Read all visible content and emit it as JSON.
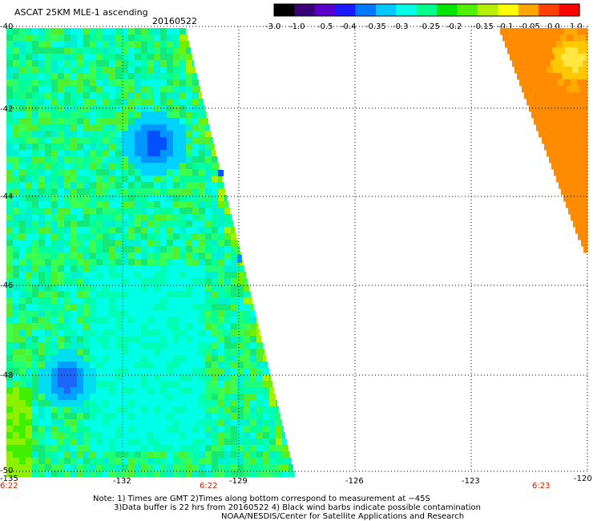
{
  "header": {
    "title": "ASCAT 25KM MLE-1 ascending",
    "date": "20160522"
  },
  "colorbar": {
    "labels": [
      "-3.0",
      "-1.0",
      "-0.5",
      "-0.4",
      "-0.35",
      "-0.3",
      "-0.25",
      "-0.2",
      "-0.15",
      "-0.1",
      "-0.05",
      "0.0",
      "1.0"
    ],
    "colors": [
      "#000000",
      "#3a0075",
      "#5a00c8",
      "#1a1aff",
      "#0078ff",
      "#00c8ff",
      "#00ffe6",
      "#00ff8c",
      "#00e600",
      "#50f000",
      "#b4f000",
      "#ffff00",
      "#ffa500",
      "#ff4000",
      "#ff0000"
    ]
  },
  "axes": {
    "lat_labels": [
      "-40",
      "-42",
      "-44",
      "-46",
      "-48",
      "-50"
    ],
    "lon_labels": [
      "-135",
      "-132",
      "-129",
      "-126",
      "-123",
      "-120"
    ],
    "times": [
      "6:22",
      "6:22",
      "6:23"
    ]
  },
  "notes": [
    "Note: 1) Times are GMT 2)Times along bottom correspond to measurement at −45S",
    "3)Data buffer is 22 hrs from 20160522 4) Black wind barbs indicate possible contamination",
    "NOAA/NESDIS/Center for Satellite Applications and Research"
  ]
}
